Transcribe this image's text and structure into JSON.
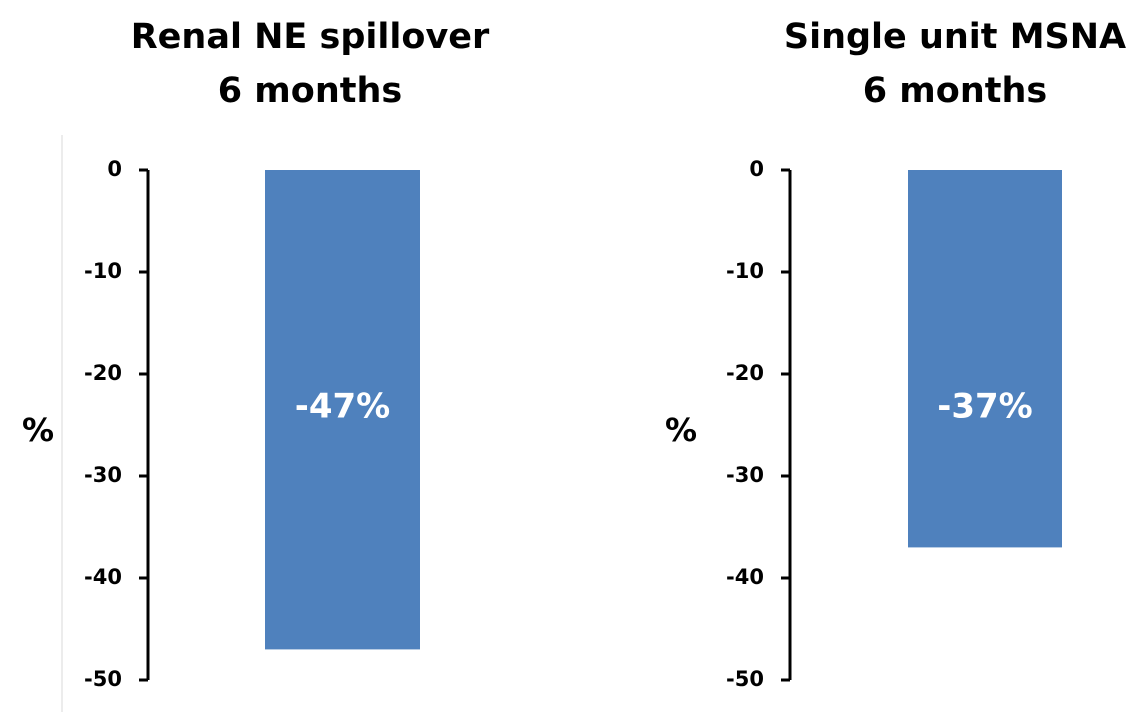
{
  "chart_data": [
    {
      "type": "bar",
      "title": [
        "Renal NE spillover",
        "6 months"
      ],
      "y_label": "%",
      "categories": [
        null
      ],
      "values": [
        -47
      ],
      "value_labels": [
        "-47%"
      ],
      "color": "#4f81bd",
      "ylim": [
        -50,
        0
      ],
      "yticks": [
        0,
        -10,
        -20,
        -30,
        -40,
        -50
      ]
    },
    {
      "type": "bar",
      "title": [
        "Single unit MSNA",
        "6 months"
      ],
      "y_label": "%",
      "categories": [
        null
      ],
      "values": [
        -37
      ],
      "value_labels": [
        "-37%"
      ],
      "color": "#4f81bd",
      "ylim": [
        -50,
        0
      ],
      "yticks": [
        0,
        -10,
        -20,
        -30,
        -40,
        -50
      ]
    }
  ]
}
